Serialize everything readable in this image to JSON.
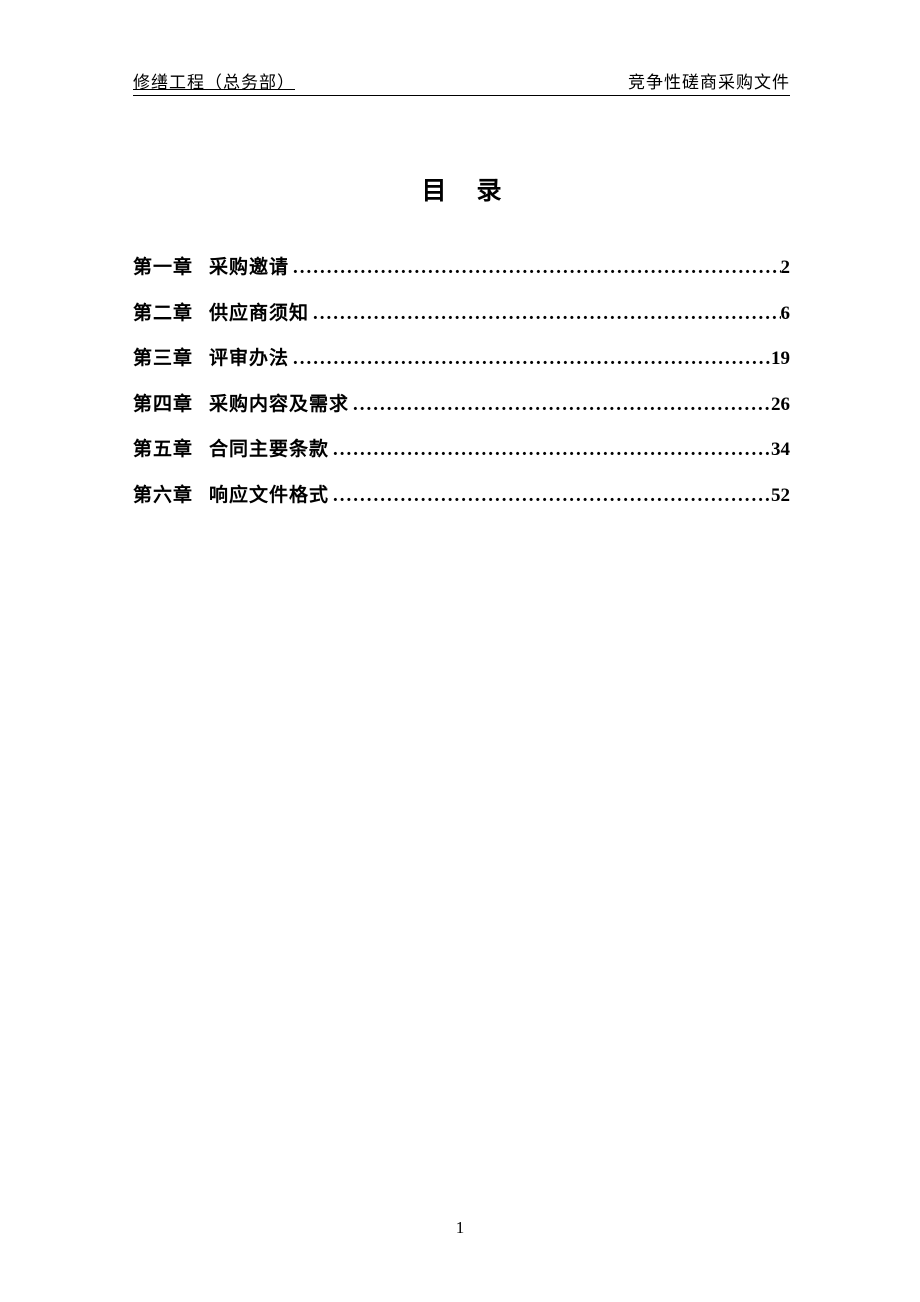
{
  "header": {
    "left": "修缮工程（总务部）",
    "right": "竞争性磋商采购文件"
  },
  "title": "目录",
  "toc": {
    "entries": [
      {
        "chapter": "第一章",
        "name": "采购邀请",
        "page": "2"
      },
      {
        "chapter": "第二章",
        "name": "供应商须知",
        "page": "6"
      },
      {
        "chapter": "第三章",
        "name": "评审办法",
        "page": "19"
      },
      {
        "chapter": "第四章",
        "name": "采购内容及需求",
        "page": "26"
      },
      {
        "chapter": "第五章",
        "name": "合同主要条款",
        "page": "34"
      },
      {
        "chapter": "第六章",
        "name": "响应文件格式",
        "page": "52"
      }
    ]
  },
  "pageNumber": "1",
  "style": {
    "background_color": "#ffffff",
    "text_color": "#000000",
    "header_fontsize": 17,
    "title_fontsize": 25,
    "toc_fontsize": 19,
    "pagenum_fontsize": 17,
    "font_family": "SimSun"
  }
}
